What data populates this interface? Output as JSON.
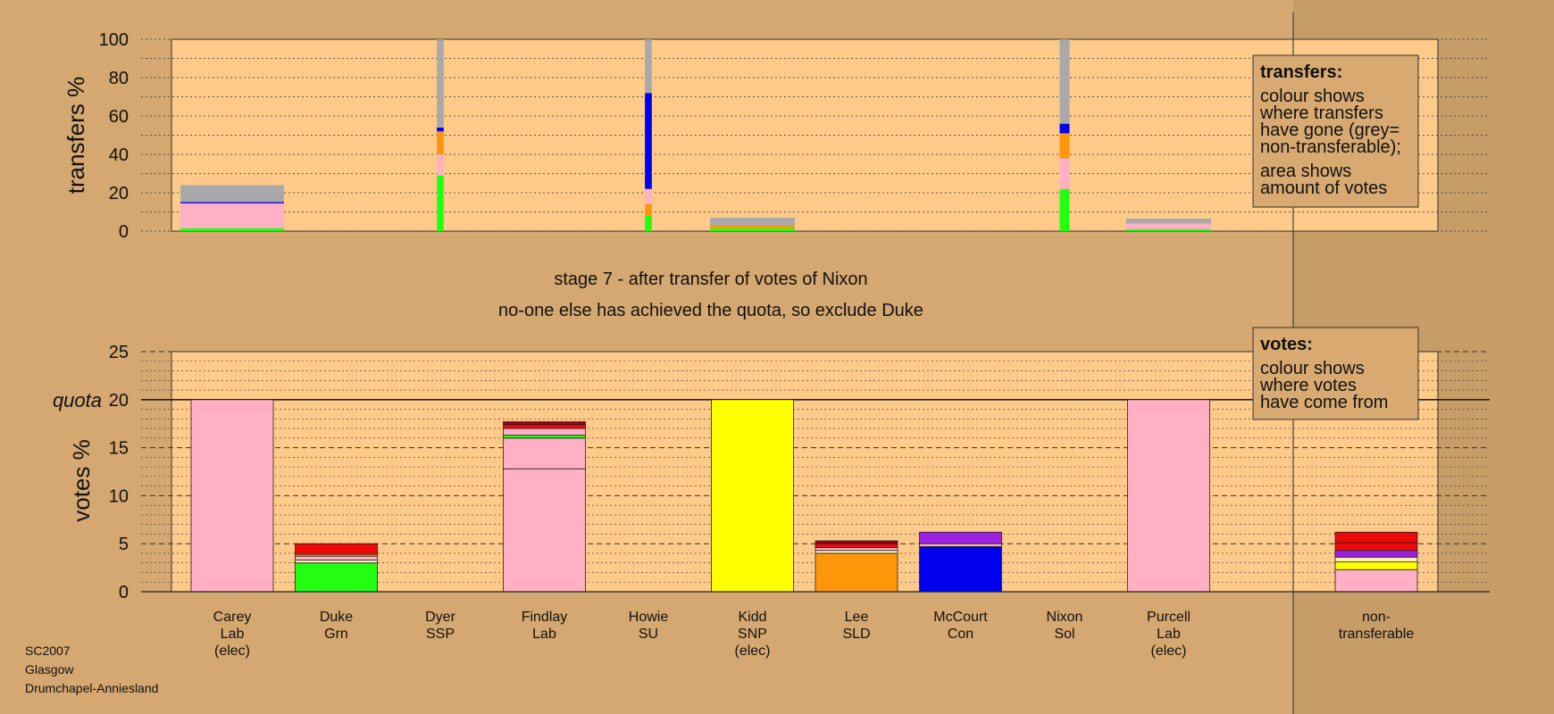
{
  "stage_title": "stage 7 - after transfer of votes of Nixon",
  "stage_subtitle": "no-one else has achieved the quota, so exclude Duke",
  "footer": [
    "SC2007",
    "Glasgow",
    "Drumchapel-Anniesland"
  ],
  "colors": {
    "grey": "#a9a9a9",
    "pink": "#ffb0c4",
    "green": "#22ff10",
    "orange": "#ff960a",
    "blue": "#0000ee",
    "yellow": "#ffff00",
    "red": "#ee0a0a",
    "darkred": "#a00020",
    "purple": "#9c20e0",
    "cream": "#fff0b0",
    "panel": "#fdca8a",
    "page": "#d4a870"
  },
  "chart_data": [
    {
      "type": "bar",
      "name": "transfers",
      "ylabel": "transfers %",
      "ylim": [
        0,
        100
      ],
      "yticks": [
        0,
        20,
        40,
        60,
        80,
        100
      ],
      "legend": {
        "title": "transfers:",
        "lines": [
          "colour shows",
          "where transfers",
          "have gone (grey=",
          "non-transferable);",
          "area shows",
          "amount of votes"
        ]
      },
      "bars": [
        {
          "from": "Carey",
          "width_share": 1.05,
          "segments": [
            {
              "color": "green",
              "from": 0,
              "to": 1.5
            },
            {
              "color": "pink",
              "from": 1.5,
              "to": 14.5
            },
            {
              "color": "blue",
              "from": 14.5,
              "to": 15.2
            },
            {
              "color": "grey",
              "from": 15.2,
              "to": 24
            }
          ]
        },
        {
          "from": "Dyer",
          "width_share": 0.07,
          "segments": [
            {
              "color": "green",
              "from": 0,
              "to": 29
            },
            {
              "color": "pink",
              "from": 29,
              "to": 40
            },
            {
              "color": "orange",
              "from": 40,
              "to": 52
            },
            {
              "color": "blue",
              "from": 52,
              "to": 54
            },
            {
              "color": "grey",
              "from": 54,
              "to": 100
            }
          ]
        },
        {
          "from": "Howie",
          "width_share": 0.07,
          "segments": [
            {
              "color": "green",
              "from": 0,
              "to": 8
            },
            {
              "color": "orange",
              "from": 8,
              "to": 14
            },
            {
              "color": "pink",
              "from": 14,
              "to": 22
            },
            {
              "color": "blue",
              "from": 22,
              "to": 72
            },
            {
              "color": "grey",
              "from": 72,
              "to": 100
            }
          ]
        },
        {
          "from": "Kidd",
          "width_share": 0.86,
          "segments": [
            {
              "color": "green",
              "from": 0,
              "to": 1.5
            },
            {
              "color": "orange",
              "from": 1.5,
              "to": 3
            },
            {
              "color": "grey",
              "from": 3,
              "to": 7
            }
          ]
        },
        {
          "from": "Nixon",
          "width_share": 0.1,
          "segments": [
            {
              "color": "green",
              "from": 0,
              "to": 22
            },
            {
              "color": "pink",
              "from": 22,
              "to": 38
            },
            {
              "color": "orange",
              "from": 38,
              "to": 51
            },
            {
              "color": "blue",
              "from": 51,
              "to": 56
            },
            {
              "color": "grey",
              "from": 56,
              "to": 100
            }
          ]
        },
        {
          "from": "Purcell",
          "width_share": 0.86,
          "segments": [
            {
              "color": "green",
              "from": 0,
              "to": 1
            },
            {
              "color": "pink",
              "from": 1,
              "to": 4
            },
            {
              "color": "grey",
              "from": 4,
              "to": 6.5
            }
          ]
        }
      ]
    },
    {
      "type": "bar",
      "name": "votes",
      "ylabel": "votes %",
      "ylim": [
        0,
        25
      ],
      "yticks": [
        0,
        5,
        10,
        15,
        20,
        25
      ],
      "quota": 20,
      "quota_label": "quota",
      "legend": {
        "title": "votes:",
        "lines": [
          "colour shows",
          "where votes",
          "have come from"
        ]
      },
      "categories": [
        {
          "name": "Carey",
          "party": "Lab",
          "note": "(elec)"
        },
        {
          "name": "Duke",
          "party": "Grn",
          "note": ""
        },
        {
          "name": "Dyer",
          "party": "SSP",
          "note": ""
        },
        {
          "name": "Findlay",
          "party": "Lab",
          "note": ""
        },
        {
          "name": "Howie",
          "party": "SU",
          "note": ""
        },
        {
          "name": "Kidd",
          "party": "SNP",
          "note": "(elec)"
        },
        {
          "name": "Lee",
          "party": "SLD",
          "note": ""
        },
        {
          "name": "McCourt",
          "party": "Con",
          "note": ""
        },
        {
          "name": "Nixon",
          "party": "Sol",
          "note": ""
        },
        {
          "name": "Purcell",
          "party": "Lab",
          "note": "(elec)"
        }
      ],
      "nontransferable_label": [
        "non-",
        "transferable"
      ],
      "stacks": [
        [
          {
            "color": "pink",
            "value": 20
          }
        ],
        [
          {
            "color": "green",
            "value": 3
          },
          {
            "color": "cream",
            "value": 0.3
          },
          {
            "color": "pink",
            "value": 0.4
          },
          {
            "color": "orange",
            "value": 0.2
          },
          {
            "color": "red",
            "value": 1.1
          }
        ],
        [],
        [
          {
            "color": "pink",
            "value": 12.8
          },
          {
            "color": "pink",
            "value": 3.2
          },
          {
            "color": "green",
            "value": 0.3
          },
          {
            "color": "pink",
            "value": 0.7
          },
          {
            "color": "red",
            "value": 0.4
          },
          {
            "color": "darkred",
            "value": 0.3
          }
        ],
        [],
        [
          {
            "color": "yellow",
            "value": 20
          }
        ],
        [
          {
            "color": "orange",
            "value": 4
          },
          {
            "color": "cream",
            "value": 0.3
          },
          {
            "color": "pink",
            "value": 0.3
          },
          {
            "color": "red",
            "value": 0.4
          },
          {
            "color": "darkred",
            "value": 0.3
          }
        ],
        [
          {
            "color": "blue",
            "value": 4.7
          },
          {
            "color": "pink",
            "value": 0.3
          },
          {
            "color": "purple",
            "value": 1.2
          }
        ],
        [],
        [
          {
            "color": "pink",
            "value": 20
          }
        ]
      ],
      "nontransferable": [
        {
          "color": "pink",
          "value": 2.3
        },
        {
          "color": "yellow",
          "value": 0.8
        },
        {
          "color": "cream",
          "value": 0.5
        },
        {
          "color": "purple",
          "value": 0.7
        },
        {
          "color": "red",
          "value": 0.8
        },
        {
          "color": "red",
          "value": 1.1
        }
      ]
    }
  ]
}
